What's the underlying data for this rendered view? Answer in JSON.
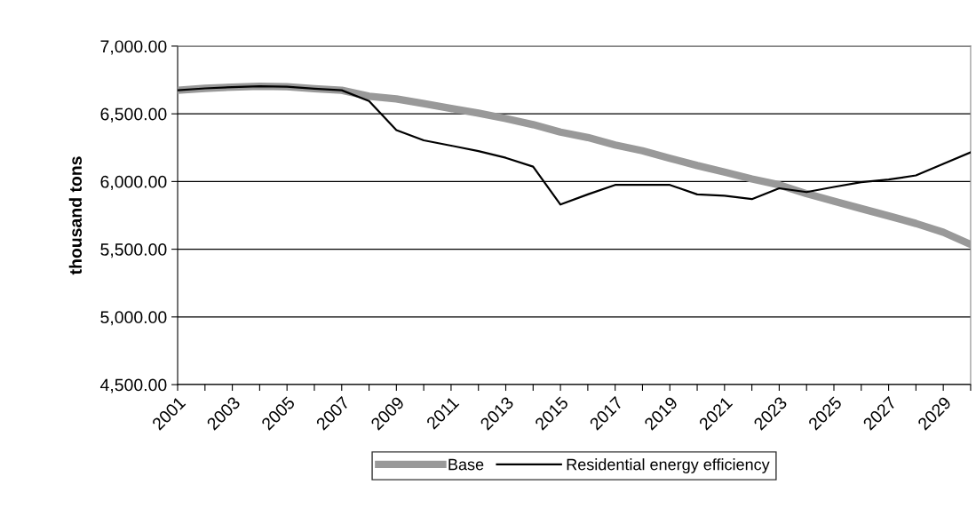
{
  "chart_data": {
    "type": "line",
    "ylabel": "thousand tons",
    "categories": [
      "2001",
      null,
      "2003",
      null,
      "2005",
      null,
      "2007",
      null,
      "2009",
      null,
      "2011",
      null,
      "2013",
      null,
      "2015",
      null,
      "2017",
      null,
      "2019",
      null,
      "2021",
      null,
      "2023",
      null,
      "2025",
      null,
      "2027",
      null,
      "2029",
      null
    ],
    "series": [
      {
        "name": "Base",
        "color": "#999999",
        "values": [
          6674,
          6688,
          6697,
          6703,
          6700,
          6685,
          6674,
          6630,
          6610,
          6575,
          6540,
          6505,
          6465,
          6420,
          6365,
          6325,
          6270,
          6227,
          6172,
          6118,
          6070,
          6019,
          5975,
          5910,
          5855,
          5800,
          5746,
          5690,
          5625,
          5535
        ]
      },
      {
        "name": "Residential energy efficiency",
        "color": "#000000",
        "values": [
          6674,
          6688,
          6697,
          6703,
          6700,
          6685,
          6674,
          6594,
          6380,
          6304,
          6265,
          6225,
          6175,
          6110,
          5830,
          5905,
          5975,
          5975,
          5975,
          5905,
          5895,
          5870,
          5950,
          5922,
          5960,
          5995,
          6015,
          6045,
          6130,
          6215
        ]
      }
    ],
    "ylim": [
      4500,
      7000
    ],
    "yticks": [
      {
        "value": 4500,
        "label": "4,500.00"
      },
      {
        "value": 5000,
        "label": "5,000.00"
      },
      {
        "value": 5500,
        "label": "5,500.00"
      },
      {
        "value": 6000,
        "label": "6,000.00"
      },
      {
        "value": 6500,
        "label": "6,500.00"
      },
      {
        "value": 7000,
        "label": "7,000.00"
      }
    ],
    "grid": "y",
    "legend": "bottom",
    "marker": "none",
    "line_style": "solid"
  }
}
